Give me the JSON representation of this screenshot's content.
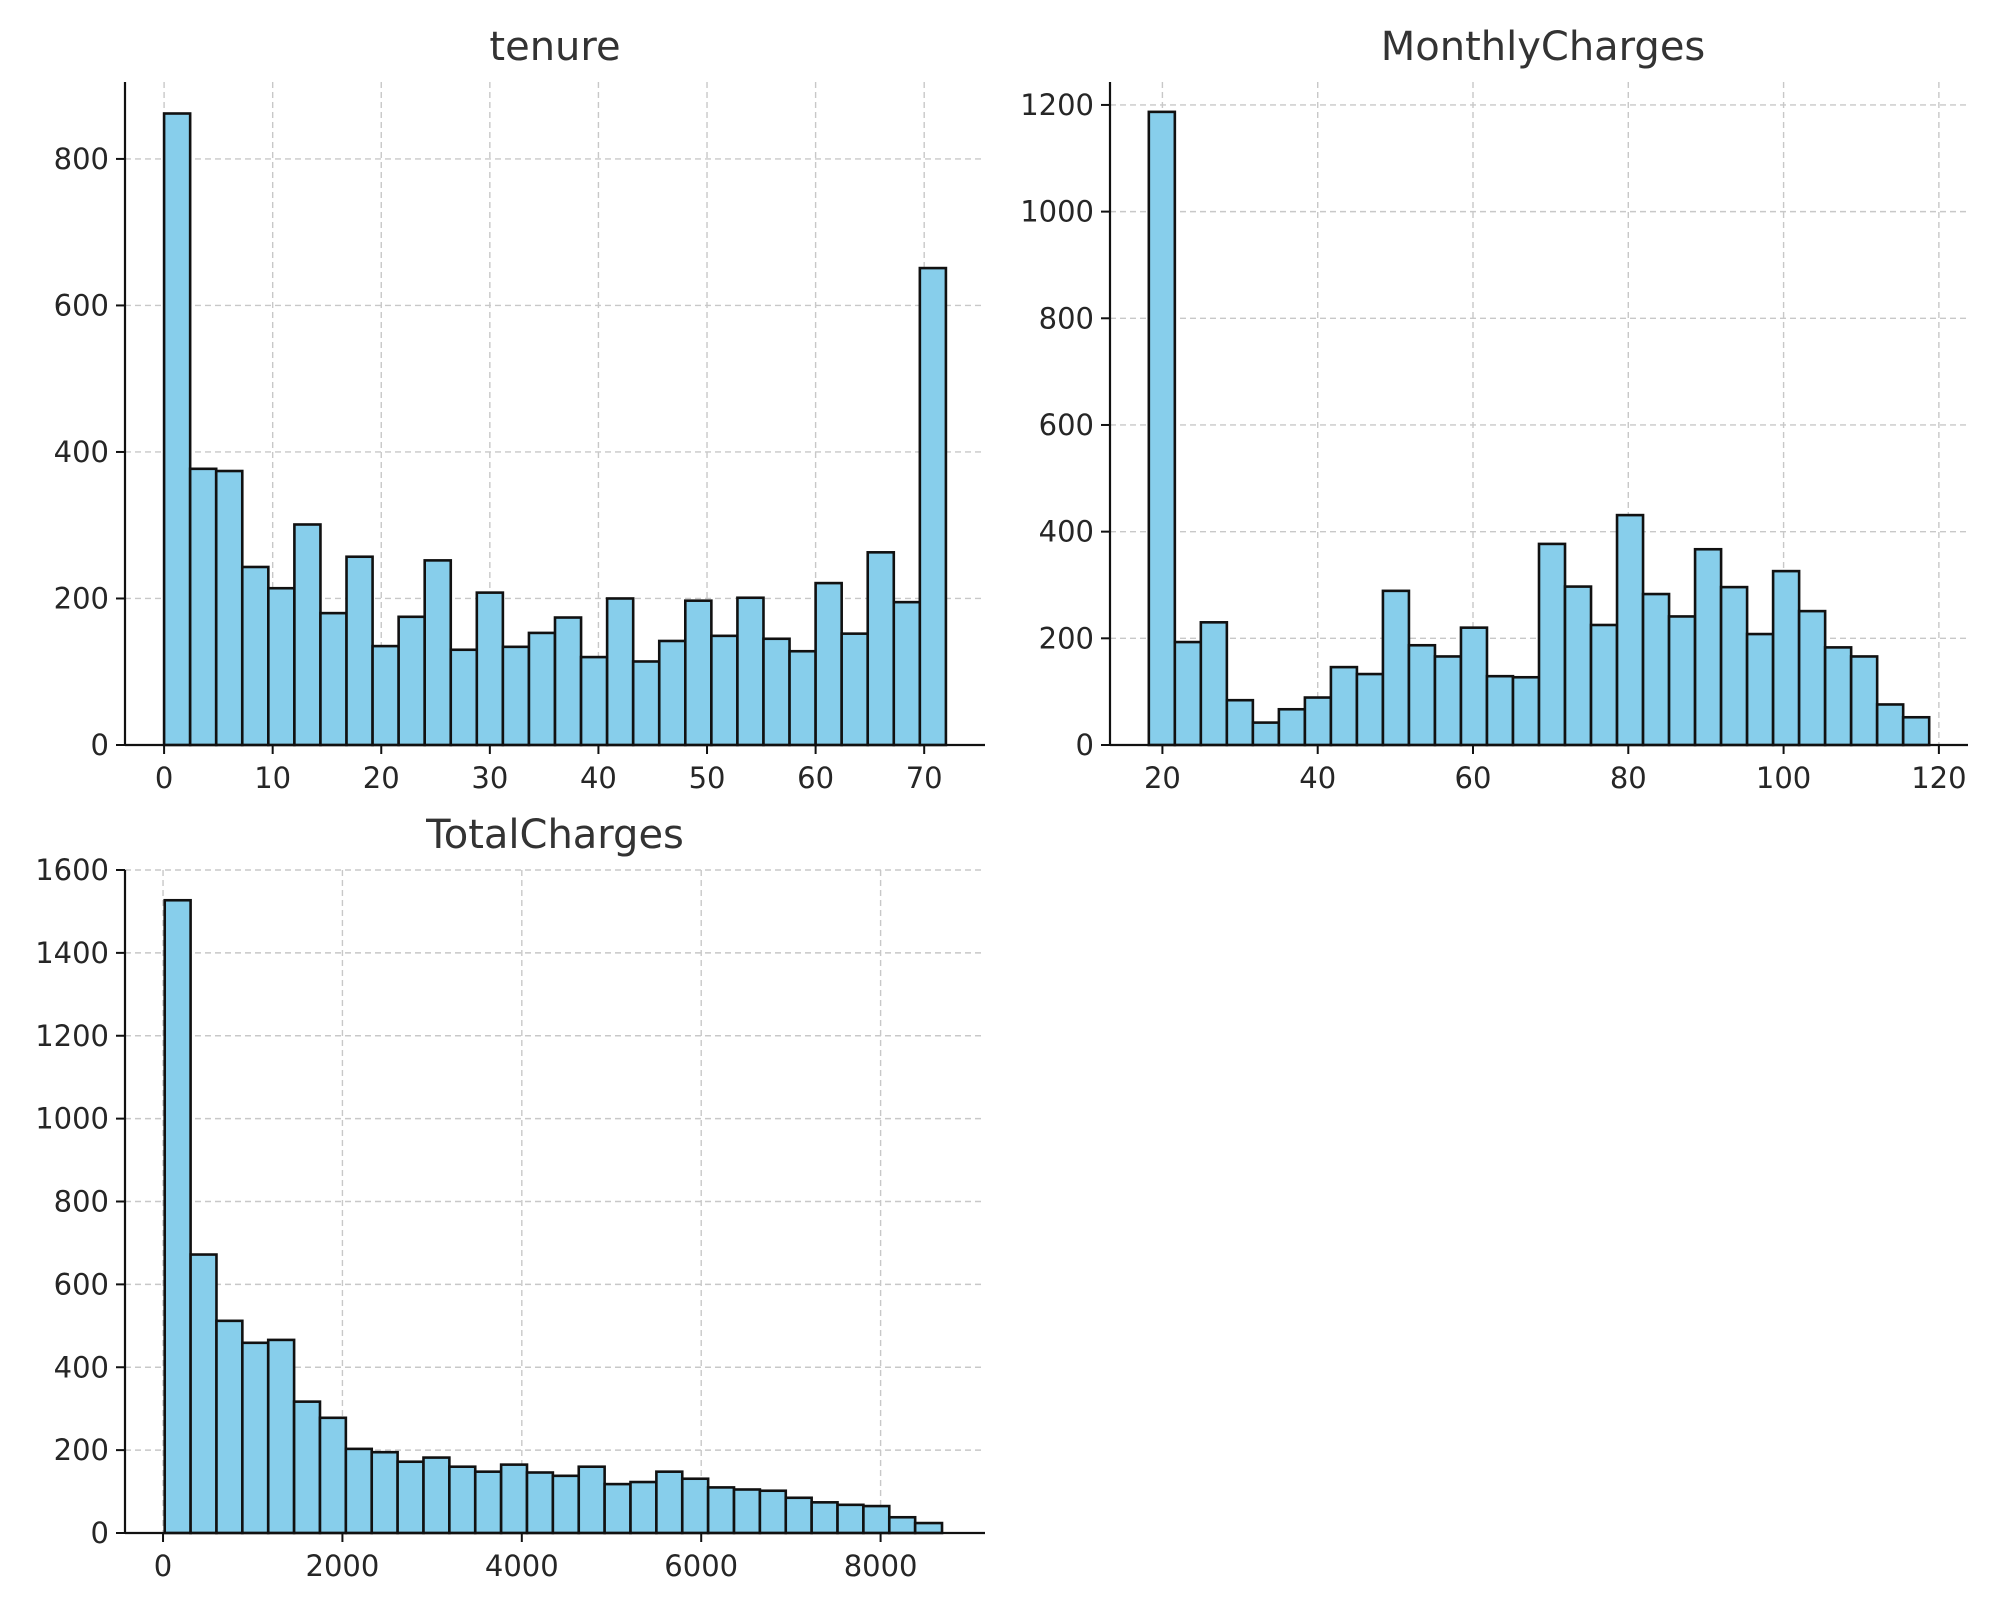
{
  "figure": {
    "background": "#ffffff",
    "bar_color": "#87ceeb",
    "bar_edge_color": "#111111",
    "grid_color": "#c8c8c8",
    "axis_color": "#111111"
  },
  "chart_data": [
    {
      "type": "bar",
      "subtype": "histogram",
      "title": "tenure",
      "xlabel": "",
      "ylabel": "",
      "grid": true,
      "xlim": [
        -3.6,
        75.6
      ],
      "ylim": [
        0,
        905
      ],
      "xticks": [
        0,
        10,
        20,
        30,
        40,
        50,
        60,
        70
      ],
      "yticks": [
        0,
        200,
        400,
        600,
        800
      ],
      "bin_edges": [
        0,
        2.4,
        4.8,
        7.2,
        9.6,
        12,
        14.4,
        16.8,
        19.2,
        21.6,
        24,
        26.4,
        28.8,
        31.2,
        33.6,
        36,
        38.4,
        40.8,
        43.2,
        45.6,
        48,
        50.4,
        52.8,
        55.2,
        57.6,
        60,
        62.4,
        64.8,
        67.2,
        69.6,
        72
      ],
      "values": [
        862,
        377,
        374,
        243,
        214,
        301,
        180,
        257,
        135,
        175,
        252,
        130,
        208,
        134,
        153,
        174,
        120,
        200,
        114,
        142,
        197,
        149,
        201,
        145,
        128,
        221,
        152,
        263,
        195,
        651
      ]
    },
    {
      "type": "bar",
      "subtype": "histogram",
      "title": "MonthlyCharges",
      "xlabel": "",
      "ylabel": "",
      "grid": true,
      "xlim": [
        13.25,
        123.75
      ],
      "ylim": [
        0,
        1243
      ],
      "xticks": [
        20,
        40,
        60,
        80,
        100,
        120
      ],
      "yticks": [
        0,
        200,
        400,
        600,
        800,
        1000,
        1200
      ],
      "bin_edges": [
        18.25,
        21.6,
        24.95,
        28.3,
        31.65,
        35,
        38.35,
        41.7,
        45.05,
        48.4,
        51.75,
        55.1,
        58.45,
        61.8,
        65.15,
        68.5,
        71.85,
        75.2,
        78.55,
        81.9,
        85.25,
        88.6,
        91.95,
        95.3,
        98.65,
        102,
        105.35,
        108.7,
        112.05,
        115.4,
        118.75
      ],
      "values": [
        1187,
        193,
        230,
        84,
        42,
        67,
        89,
        146,
        133,
        289,
        187,
        166,
        220,
        129,
        127,
        377,
        297,
        225,
        431,
        283,
        241,
        367,
        296,
        208,
        326,
        251,
        183,
        166,
        76,
        52
      ]
    },
    {
      "type": "bar",
      "subtype": "histogram",
      "title": "TotalCharges",
      "xlabel": "",
      "ylabel": "",
      "grid": true,
      "xlim": [
        -424,
        9164
      ],
      "ylim": [
        0,
        1600
      ],
      "xticks": [
        0,
        2000,
        4000,
        6000,
        8000
      ],
      "yticks": [
        0,
        200,
        400,
        600,
        800,
        1000,
        1200,
        1400,
        1600
      ],
      "bin_edges": [
        18.8,
        307.3,
        595.8,
        884.3,
        1172.8,
        1461.3,
        1749.8,
        2038.3,
        2326.8,
        2615.3,
        2903.8,
        3192.3,
        3480.8,
        3769.3,
        4057.8,
        4346.3,
        4634.8,
        4923.3,
        5211.8,
        5500.3,
        5788.8,
        6077.3,
        6365.8,
        6654.3,
        6942.8,
        7231.3,
        7519.8,
        7808.3,
        8096.8,
        8385.3,
        8684.8
      ],
      "values": [
        1527,
        672,
        512,
        459,
        466,
        317,
        278,
        203,
        195,
        172,
        182,
        160,
        148,
        165,
        146,
        138,
        160,
        118,
        123,
        148,
        131,
        110,
        105,
        102,
        85,
        74,
        68,
        65,
        38,
        24
      ]
    }
  ]
}
